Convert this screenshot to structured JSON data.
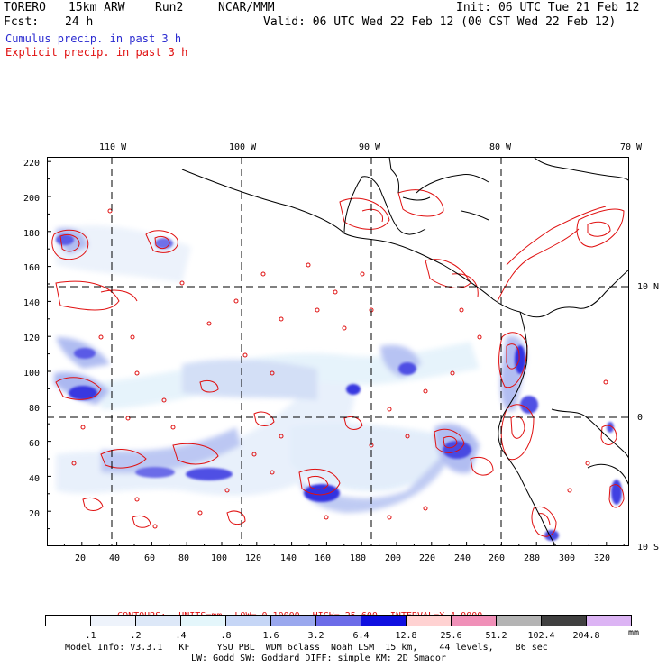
{
  "header": {
    "model": "TORERO",
    "resolution": "15km ARW",
    "run": "Run2",
    "org": "NCAR/MMM",
    "init": "Init: 06 UTC Tue 21 Feb 12",
    "fcst_label": "Fcst:",
    "fcst_value": "24 h",
    "valid": "Valid: 06 UTC Wed 22 Feb 12 (00 CST Wed 22 Feb 12)",
    "field1": "Cumulus precip. in past 3 h",
    "field2": "Explicit precip. in past 3 h",
    "field1_color": "#2a2ad0",
    "field2_color": "#e01010"
  },
  "map": {
    "top_lon_labels": [
      "110 W",
      "100 W",
      "90 W",
      "80 W",
      "70 W"
    ],
    "right_lat_labels": [
      "10 N",
      "0",
      "10 S"
    ],
    "left_grid_labels": [
      "220",
      "200",
      "180",
      "160",
      "140",
      "120",
      "100",
      "80",
      "60",
      "40",
      "20"
    ],
    "bottom_grid_labels": [
      "20",
      "40",
      "60",
      "80",
      "100",
      "120",
      "140",
      "160",
      "180",
      "200",
      "220",
      "240",
      "260",
      "280",
      "300",
      "320"
    ],
    "x_range": [
      0,
      335
    ],
    "y_range": [
      0,
      225
    ]
  },
  "contours": {
    "label": "CONTOURS:",
    "units": "UNITS=mm",
    "low": "LOW= 0.10000",
    "high": "HIGH= 25.600",
    "interval": "INTERVAL=X 4.0000"
  },
  "colorbar": {
    "labels": [
      ".1",
      ".2",
      ".4",
      ".8",
      "1.6",
      "3.2",
      "6.4",
      "12.8",
      "25.6",
      "51.2",
      "102.4",
      "204.8"
    ],
    "colors": [
      "#ffffff",
      "#eef3fb",
      "#dde8f8",
      "#e4f6fb",
      "#c6d6f6",
      "#9aa8ee",
      "#6c6ce8",
      "#1010e0",
      "#ffd2d2",
      "#f090b8",
      "#b4b4b4",
      "#404040",
      "#dcb4f4"
    ],
    "unit": "mm"
  },
  "footer": {
    "line1": "Model Info: V3.3.1   KF     YSU PBL  WDM 6class  Noah LSM  15 km,    44 levels,    86 sec",
    "line2": "LW: Godd SW: Goddard DIFF: simple KM: 2D Smagor"
  }
}
